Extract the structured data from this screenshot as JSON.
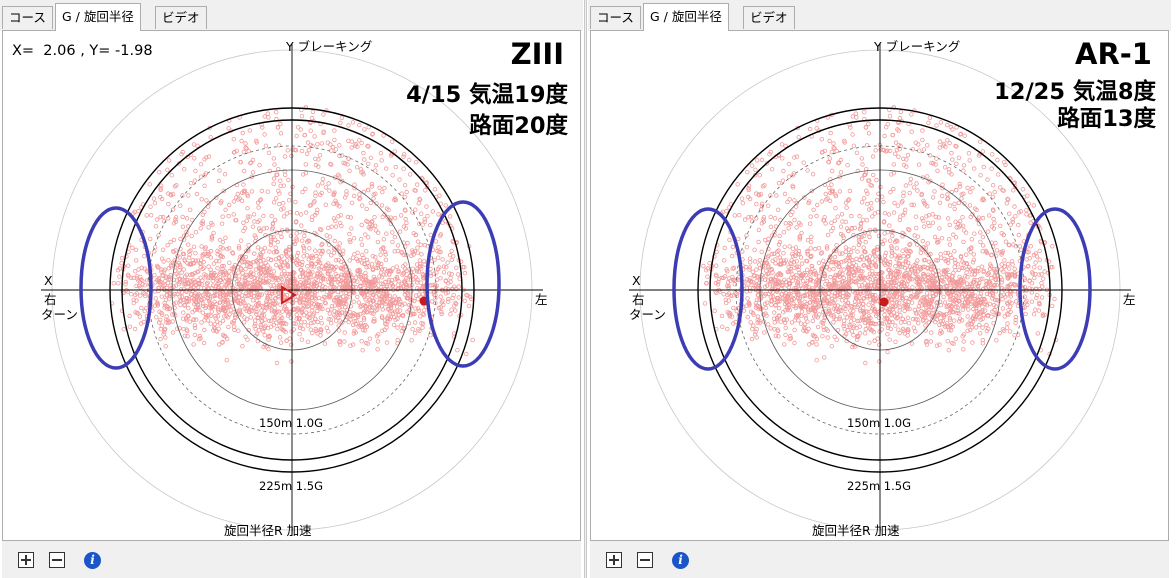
{
  "panels": [
    {
      "tabs": [
        "コース",
        "G / 旋回半径",
        "ビデオ"
      ],
      "active_tab": 1,
      "coord_readout": "X=  2.06 , Y= -1.98",
      "car_name": "ZIII",
      "conditions_line1": "4/15  気温19度",
      "conditions_line2": "路面20度",
      "axis_labels": {
        "top": "Y ブレーキング",
        "left_x": "X",
        "left_turn_1": "右",
        "left_turn_2": "ターン",
        "right": "左",
        "bottom": "旋回半径R 加速"
      },
      "ring_labels": [
        "150m 1.0G",
        "225m 1.5G"
      ],
      "marker_triangle": true,
      "colors": {
        "points": "#f29a9a",
        "highlight": "#3c3cb4",
        "marker": "#cc1a1a",
        "rings": "#000000"
      }
    },
    {
      "tabs": [
        "コース",
        "G / 旋回半径",
        "ビデオ"
      ],
      "active_tab": 1,
      "coord_readout": "",
      "car_name": "AR-1",
      "conditions_line1": "12/25 気温8度",
      "conditions_line2": "路面13度",
      "axis_labels": {
        "top": "Y ブレーキング",
        "left_x": "X",
        "left_turn_1": "右",
        "left_turn_2": "ターン",
        "right": "左",
        "bottom": "旋回半径R 加速"
      },
      "ring_labels": [
        "150m 1.0G",
        "225m 1.5G"
      ],
      "marker_triangle": false,
      "colors": {
        "points": "#f29a9a",
        "highlight": "#3c3cb4",
        "marker": "#cc1a1a",
        "rings": "#000000"
      }
    }
  ],
  "toolbar_icons": [
    "zoom-in-icon",
    "zoom-out-icon",
    "info-icon"
  ]
}
